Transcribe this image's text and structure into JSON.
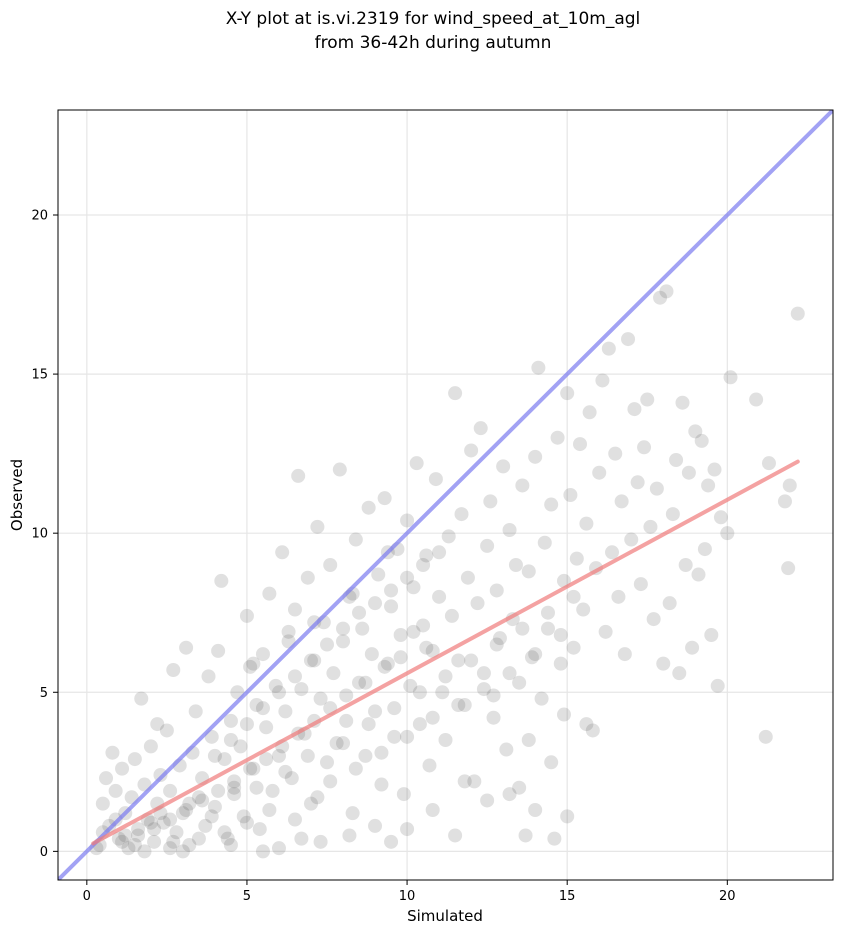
{
  "chart_data": {
    "type": "scatter",
    "title": "X-Y plot at is.vi.2319 for wind_speed_at_10m_agl",
    "subtitle": "from 36-42h during autumn",
    "xlabel": "Simulated",
    "ylabel": "Observed",
    "xlim": [
      -0.9,
      23.3
    ],
    "ylim": [
      -0.9,
      23.3
    ],
    "xticks": [
      0,
      5,
      10,
      15,
      20
    ],
    "yticks": [
      0,
      5,
      10,
      15,
      20
    ],
    "grid": true,
    "legend": "none",
    "colors": {
      "points": "#555555",
      "identity_line": "#7b7bf0",
      "fit_line": "#f07b7b",
      "grid": "#e6e6e6"
    },
    "reference_lines": [
      {
        "kind": "identity",
        "x": [
          -0.9,
          23.3
        ],
        "y": [
          -0.9,
          23.3
        ]
      },
      {
        "kind": "fit",
        "x": [
          0.2,
          22.2
        ],
        "y": [
          0.25,
          12.25
        ]
      }
    ],
    "points": [
      [
        0.4,
        0.2
      ],
      [
        0.5,
        1.5
      ],
      [
        0.6,
        2.3
      ],
      [
        0.7,
        0.8
      ],
      [
        0.8,
        3.1
      ],
      [
        0.9,
        1.9
      ],
      [
        1.0,
        0.4
      ],
      [
        1.1,
        2.6
      ],
      [
        1.2,
        1.2
      ],
      [
        1.3,
        0.1
      ],
      [
        1.4,
        1.7
      ],
      [
        1.5,
        2.9
      ],
      [
        1.6,
        0.7
      ],
      [
        1.7,
        4.8
      ],
      [
        1.8,
        2.1
      ],
      [
        1.9,
        1.0
      ],
      [
        2.0,
        3.3
      ],
      [
        2.1,
        0.3
      ],
      [
        2.2,
        1.5
      ],
      [
        2.3,
        2.4
      ],
      [
        2.4,
        0.9
      ],
      [
        2.5,
        3.8
      ],
      [
        2.6,
        1.9
      ],
      [
        2.7,
        5.7
      ],
      [
        2.8,
        0.6
      ],
      [
        2.9,
        2.7
      ],
      [
        3.0,
        1.2
      ],
      [
        3.1,
        6.4
      ],
      [
        3.2,
        0.2
      ],
      [
        3.3,
        3.1
      ],
      [
        3.4,
        4.4
      ],
      [
        3.5,
        1.7
      ],
      [
        3.6,
        2.3
      ],
      [
        3.7,
        0.8
      ],
      [
        3.8,
        5.5
      ],
      [
        3.9,
        3.6
      ],
      [
        4.0,
        1.4
      ],
      [
        4.1,
        6.3
      ],
      [
        4.2,
        8.5
      ],
      [
        4.3,
        2.9
      ],
      [
        4.4,
        0.4
      ],
      [
        4.5,
        4.1
      ],
      [
        4.6,
        2.0
      ],
      [
        4.7,
        5.0
      ],
      [
        4.8,
        3.3
      ],
      [
        4.9,
        1.1
      ],
      [
        5.0,
        7.4
      ],
      [
        5.1,
        5.8
      ],
      [
        5.2,
        2.6
      ],
      [
        5.3,
        4.6
      ],
      [
        5.4,
        0.7
      ],
      [
        5.5,
        6.2
      ],
      [
        5.6,
        3.9
      ],
      [
        5.7,
        8.1
      ],
      [
        5.8,
        1.9
      ],
      [
        5.9,
        5.2
      ],
      [
        6.0,
        3.0
      ],
      [
        6.1,
        9.4
      ],
      [
        6.2,
        4.4
      ],
      [
        6.3,
        6.9
      ],
      [
        6.4,
        2.3
      ],
      [
        6.5,
        7.6
      ],
      [
        6.6,
        11.8
      ],
      [
        6.7,
        5.1
      ],
      [
        6.8,
        3.7
      ],
      [
        6.9,
        8.6
      ],
      [
        7.0,
        1.5
      ],
      [
        7.1,
        6.0
      ],
      [
        7.2,
        10.2
      ],
      [
        7.3,
        4.8
      ],
      [
        7.4,
        7.2
      ],
      [
        7.5,
        2.8
      ],
      [
        7.6,
        9.0
      ],
      [
        7.7,
        5.6
      ],
      [
        7.8,
        3.4
      ],
      [
        7.9,
        12.0
      ],
      [
        8.0,
        6.6
      ],
      [
        8.1,
        4.1
      ],
      [
        8.2,
        8.0
      ],
      [
        8.3,
        1.2
      ],
      [
        8.4,
        9.8
      ],
      [
        8.5,
        5.3
      ],
      [
        8.6,
        7.0
      ],
      [
        8.7,
        3.0
      ],
      [
        8.8,
        10.8
      ],
      [
        8.9,
        6.2
      ],
      [
        9.0,
        4.4
      ],
      [
        9.1,
        8.7
      ],
      [
        9.2,
        2.1
      ],
      [
        9.3,
        11.1
      ],
      [
        9.4,
        5.9
      ],
      [
        9.5,
        7.7
      ],
      [
        9.6,
        3.6
      ],
      [
        9.7,
        9.5
      ],
      [
        9.8,
        6.8
      ],
      [
        9.9,
        1.8
      ],
      [
        10.0,
        10.4
      ],
      [
        10.1,
        5.2
      ],
      [
        10.2,
        8.3
      ],
      [
        10.3,
        12.2
      ],
      [
        10.4,
        4.0
      ],
      [
        10.5,
        7.1
      ],
      [
        10.6,
        9.3
      ],
      [
        10.7,
        2.7
      ],
      [
        10.8,
        6.3
      ],
      [
        10.9,
        11.7
      ],
      [
        11.0,
        8.0
      ],
      [
        11.1,
        5.0
      ],
      [
        11.2,
        3.5
      ],
      [
        11.3,
        9.9
      ],
      [
        11.4,
        7.4
      ],
      [
        11.5,
        14.4
      ],
      [
        11.6,
        6.0
      ],
      [
        11.7,
        10.6
      ],
      [
        11.8,
        4.6
      ],
      [
        11.9,
        8.6
      ],
      [
        12.0,
        12.6
      ],
      [
        12.1,
        2.2
      ],
      [
        12.2,
        7.8
      ],
      [
        12.3,
        13.3
      ],
      [
        12.4,
        5.6
      ],
      [
        12.5,
        9.6
      ],
      [
        12.6,
        11.0
      ],
      [
        12.7,
        4.2
      ],
      [
        12.8,
        8.2
      ],
      [
        12.9,
        6.7
      ],
      [
        13.0,
        12.1
      ],
      [
        13.1,
        3.2
      ],
      [
        13.2,
        10.1
      ],
      [
        13.3,
        7.3
      ],
      [
        13.4,
        9.0
      ],
      [
        13.5,
        5.3
      ],
      [
        13.6,
        11.5
      ],
      [
        13.7,
        0.5
      ],
      [
        13.8,
        8.8
      ],
      [
        13.9,
        6.1
      ],
      [
        14.0,
        12.4
      ],
      [
        14.1,
        15.2
      ],
      [
        14.2,
        4.8
      ],
      [
        14.3,
        9.7
      ],
      [
        14.4,
        7.0
      ],
      [
        14.5,
        10.9
      ],
      [
        14.6,
        0.4
      ],
      [
        14.7,
        13.0
      ],
      [
        14.8,
        5.9
      ],
      [
        14.9,
        8.5
      ],
      [
        15.0,
        14.4
      ],
      [
        15.1,
        11.2
      ],
      [
        15.2,
        6.4
      ],
      [
        15.3,
        9.2
      ],
      [
        15.4,
        12.8
      ],
      [
        15.5,
        7.6
      ],
      [
        15.6,
        10.3
      ],
      [
        15.7,
        13.8
      ],
      [
        15.8,
        3.8
      ],
      [
        15.9,
        8.9
      ],
      [
        16.0,
        11.9
      ],
      [
        16.1,
        14.8
      ],
      [
        16.2,
        6.9
      ],
      [
        16.3,
        15.8
      ],
      [
        16.4,
        9.4
      ],
      [
        16.5,
        12.5
      ],
      [
        16.6,
        8.0
      ],
      [
        16.7,
        11.0
      ],
      [
        16.8,
        6.2
      ],
      [
        16.9,
        16.1
      ],
      [
        17.0,
        9.8
      ],
      [
        17.1,
        13.9
      ],
      [
        17.2,
        11.6
      ],
      [
        17.3,
        8.4
      ],
      [
        17.4,
        12.7
      ],
      [
        17.5,
        14.2
      ],
      [
        17.6,
        10.2
      ],
      [
        17.7,
        7.3
      ],
      [
        17.8,
        11.4
      ],
      [
        17.9,
        17.4
      ],
      [
        18.0,
        5.9
      ],
      [
        18.1,
        17.6
      ],
      [
        18.2,
        7.8
      ],
      [
        18.3,
        10.6
      ],
      [
        18.4,
        12.3
      ],
      [
        18.5,
        5.6
      ],
      [
        18.6,
        14.1
      ],
      [
        18.7,
        9.0
      ],
      [
        18.8,
        11.9
      ],
      [
        18.9,
        6.4
      ],
      [
        19.0,
        13.2
      ],
      [
        19.1,
        8.7
      ],
      [
        19.2,
        12.9
      ],
      [
        19.3,
        9.5
      ],
      [
        19.4,
        11.5
      ],
      [
        19.5,
        6.8
      ],
      [
        19.6,
        12.0
      ],
      [
        19.7,
        5.2
      ],
      [
        19.8,
        10.5
      ],
      [
        20.0,
        10.0
      ],
      [
        20.1,
        14.9
      ],
      [
        20.9,
        14.2
      ],
      [
        21.2,
        3.6
      ],
      [
        21.3,
        12.2
      ],
      [
        21.8,
        11.0
      ],
      [
        21.9,
        8.9
      ],
      [
        22.2,
        16.9
      ],
      [
        21.95,
        11.5
      ],
      [
        2.2,
        4.0
      ],
      [
        3.0,
        0.0
      ],
      [
        4.5,
        0.2
      ],
      [
        6.0,
        0.1
      ],
      [
        7.3,
        0.3
      ],
      [
        5.5,
        0.0
      ],
      [
        1.8,
        0.0
      ],
      [
        2.6,
        0.1
      ],
      [
        6.7,
        0.4
      ],
      [
        8.2,
        0.5
      ],
      [
        9.0,
        0.8
      ],
      [
        9.5,
        0.3
      ],
      [
        10.0,
        0.7
      ],
      [
        11.5,
        0.5
      ],
      [
        12.5,
        1.6
      ],
      [
        13.2,
        1.8
      ],
      [
        14.0,
        1.3
      ],
      [
        14.5,
        2.8
      ],
      [
        15.0,
        1.1
      ],
      [
        13.8,
        3.5
      ],
      [
        14.9,
        4.3
      ],
      [
        15.6,
        4.0
      ],
      [
        12.7,
        4.9
      ],
      [
        13.5,
        2.0
      ],
      [
        11.8,
        2.2
      ],
      [
        10.8,
        1.3
      ],
      [
        0.3,
        0.1
      ],
      [
        0.5,
        0.6
      ],
      [
        0.9,
        1.0
      ],
      [
        1.2,
        0.5
      ],
      [
        1.5,
        0.2
      ],
      [
        2.0,
        0.9
      ],
      [
        2.3,
        1.2
      ],
      [
        2.7,
        0.3
      ],
      [
        3.2,
        1.5
      ],
      [
        3.5,
        0.4
      ],
      [
        3.9,
        1.1
      ],
      [
        4.3,
        0.6
      ],
      [
        4.6,
        1.8
      ],
      [
        5.0,
        0.9
      ],
      [
        5.3,
        2.0
      ],
      [
        5.7,
        1.3
      ],
      [
        6.2,
        2.5
      ],
      [
        6.5,
        1.0
      ],
      [
        6.9,
        3.0
      ],
      [
        7.2,
        1.7
      ],
      [
        7.6,
        2.2
      ],
      [
        8.0,
        3.4
      ],
      [
        8.4,
        2.6
      ],
      [
        8.8,
        4.0
      ],
      [
        9.2,
        3.1
      ],
      [
        9.6,
        4.5
      ],
      [
        10.0,
        3.6
      ],
      [
        10.4,
        5.0
      ],
      [
        10.8,
        4.2
      ],
      [
        11.2,
        5.5
      ],
      [
        11.6,
        4.6
      ],
      [
        12.0,
        6.0
      ],
      [
        12.4,
        5.1
      ],
      [
        12.8,
        6.5
      ],
      [
        13.2,
        5.6
      ],
      [
        13.6,
        7.0
      ],
      [
        14.0,
        6.2
      ],
      [
        14.4,
        7.5
      ],
      [
        14.8,
        6.8
      ],
      [
        15.2,
        8.0
      ],
      [
        4.0,
        3.0
      ],
      [
        4.5,
        3.5
      ],
      [
        5.0,
        4.0
      ],
      [
        5.5,
        4.5
      ],
      [
        6.0,
        5.0
      ],
      [
        6.5,
        5.5
      ],
      [
        7.0,
        6.0
      ],
      [
        7.5,
        6.5
      ],
      [
        8.0,
        7.0
      ],
      [
        8.5,
        7.5
      ],
      [
        9.0,
        7.8
      ],
      [
        9.5,
        8.2
      ],
      [
        10.0,
        8.6
      ],
      [
        10.5,
        9.0
      ],
      [
        11.0,
        9.4
      ],
      [
        5.2,
        5.9
      ],
      [
        6.3,
        6.6
      ],
      [
        7.1,
        7.2
      ],
      [
        8.3,
        8.1
      ],
      [
        9.4,
        9.4
      ],
      [
        10.2,
        6.9
      ],
      [
        10.6,
        6.4
      ],
      [
        9.8,
        6.1
      ],
      [
        9.3,
        5.8
      ],
      [
        8.7,
        5.3
      ],
      [
        8.1,
        4.9
      ],
      [
        7.6,
        4.5
      ],
      [
        7.1,
        4.1
      ],
      [
        6.6,
        3.7
      ],
      [
        6.1,
        3.3
      ],
      [
        5.6,
        2.9
      ],
      [
        5.1,
        2.6
      ],
      [
        4.6,
        2.2
      ],
      [
        4.1,
        1.9
      ],
      [
        3.6,
        1.6
      ],
      [
        3.1,
        1.3
      ],
      [
        2.6,
        1.0
      ],
      [
        2.1,
        0.7
      ],
      [
        1.6,
        0.5
      ],
      [
        1.1,
        0.3
      ]
    ]
  }
}
